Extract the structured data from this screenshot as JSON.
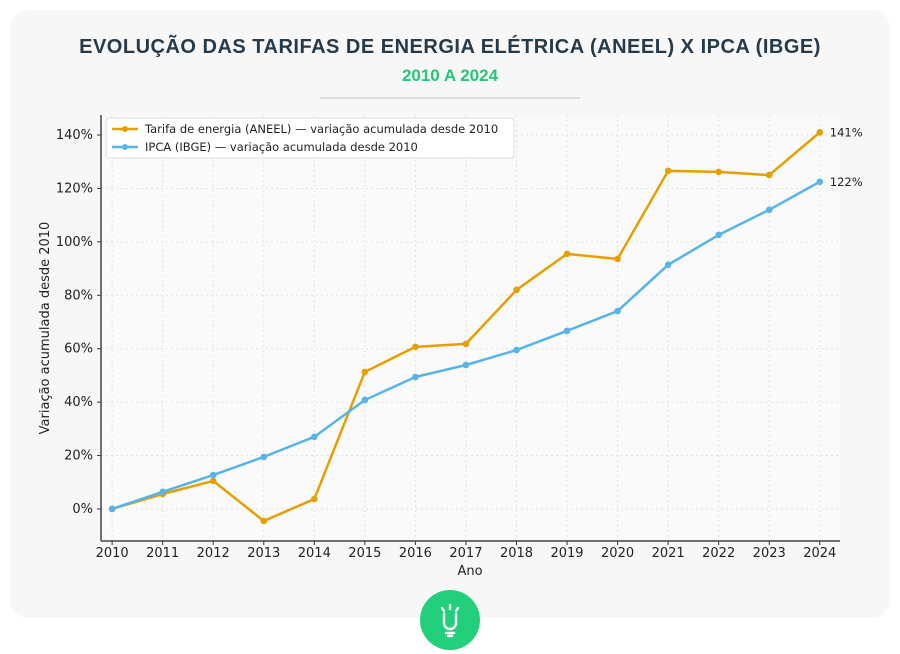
{
  "header": {
    "title": "EVOLUÇÃO DAS TARIFAS DE ENERGIA ELÉTRICA (ANEEL) X IPCA (IBGE)",
    "subtitle": "2010 A 2024"
  },
  "logo": {
    "icon": "lightbulb-icon",
    "color": "#22d07c"
  },
  "chart_data": {
    "type": "line",
    "title": "",
    "xlabel": "Ano",
    "ylabel": "Variação acumulada desde 2010",
    "x": [
      2010,
      2011,
      2012,
      2013,
      2014,
      2015,
      2016,
      2017,
      2018,
      2019,
      2020,
      2021,
      2022,
      2023,
      2024
    ],
    "xlim": [
      2009.78,
      2024.4
    ],
    "ylim": [
      -12,
      147.5
    ],
    "yticks": [
      0,
      20,
      40,
      60,
      80,
      100,
      120,
      140
    ],
    "ytick_labels": [
      "0%",
      "20%",
      "40%",
      "60%",
      "80%",
      "100%",
      "120%",
      "140%"
    ],
    "grid": true,
    "legend_position": "top-left",
    "series": [
      {
        "name": "Tarifa de energia (ANEEL) — variação acumulada desde 2010",
        "color": "#e69f00",
        "values": [
          0,
          5.6,
          10.5,
          -4.5,
          3.7,
          51.3,
          60.7,
          61.8,
          82,
          95.5,
          93.6,
          126.6,
          126.2,
          125,
          141
        ],
        "end_label": "141%"
      },
      {
        "name": "IPCA (IBGE) — variação acumulada desde 2010",
        "color": "#56b4e9",
        "values": [
          0,
          6.4,
          12.7,
          19.5,
          27,
          40.8,
          49.4,
          53.9,
          59.5,
          66.7,
          74.1,
          91.4,
          102.6,
          112,
          122.5
        ],
        "end_label": "122%"
      }
    ]
  }
}
